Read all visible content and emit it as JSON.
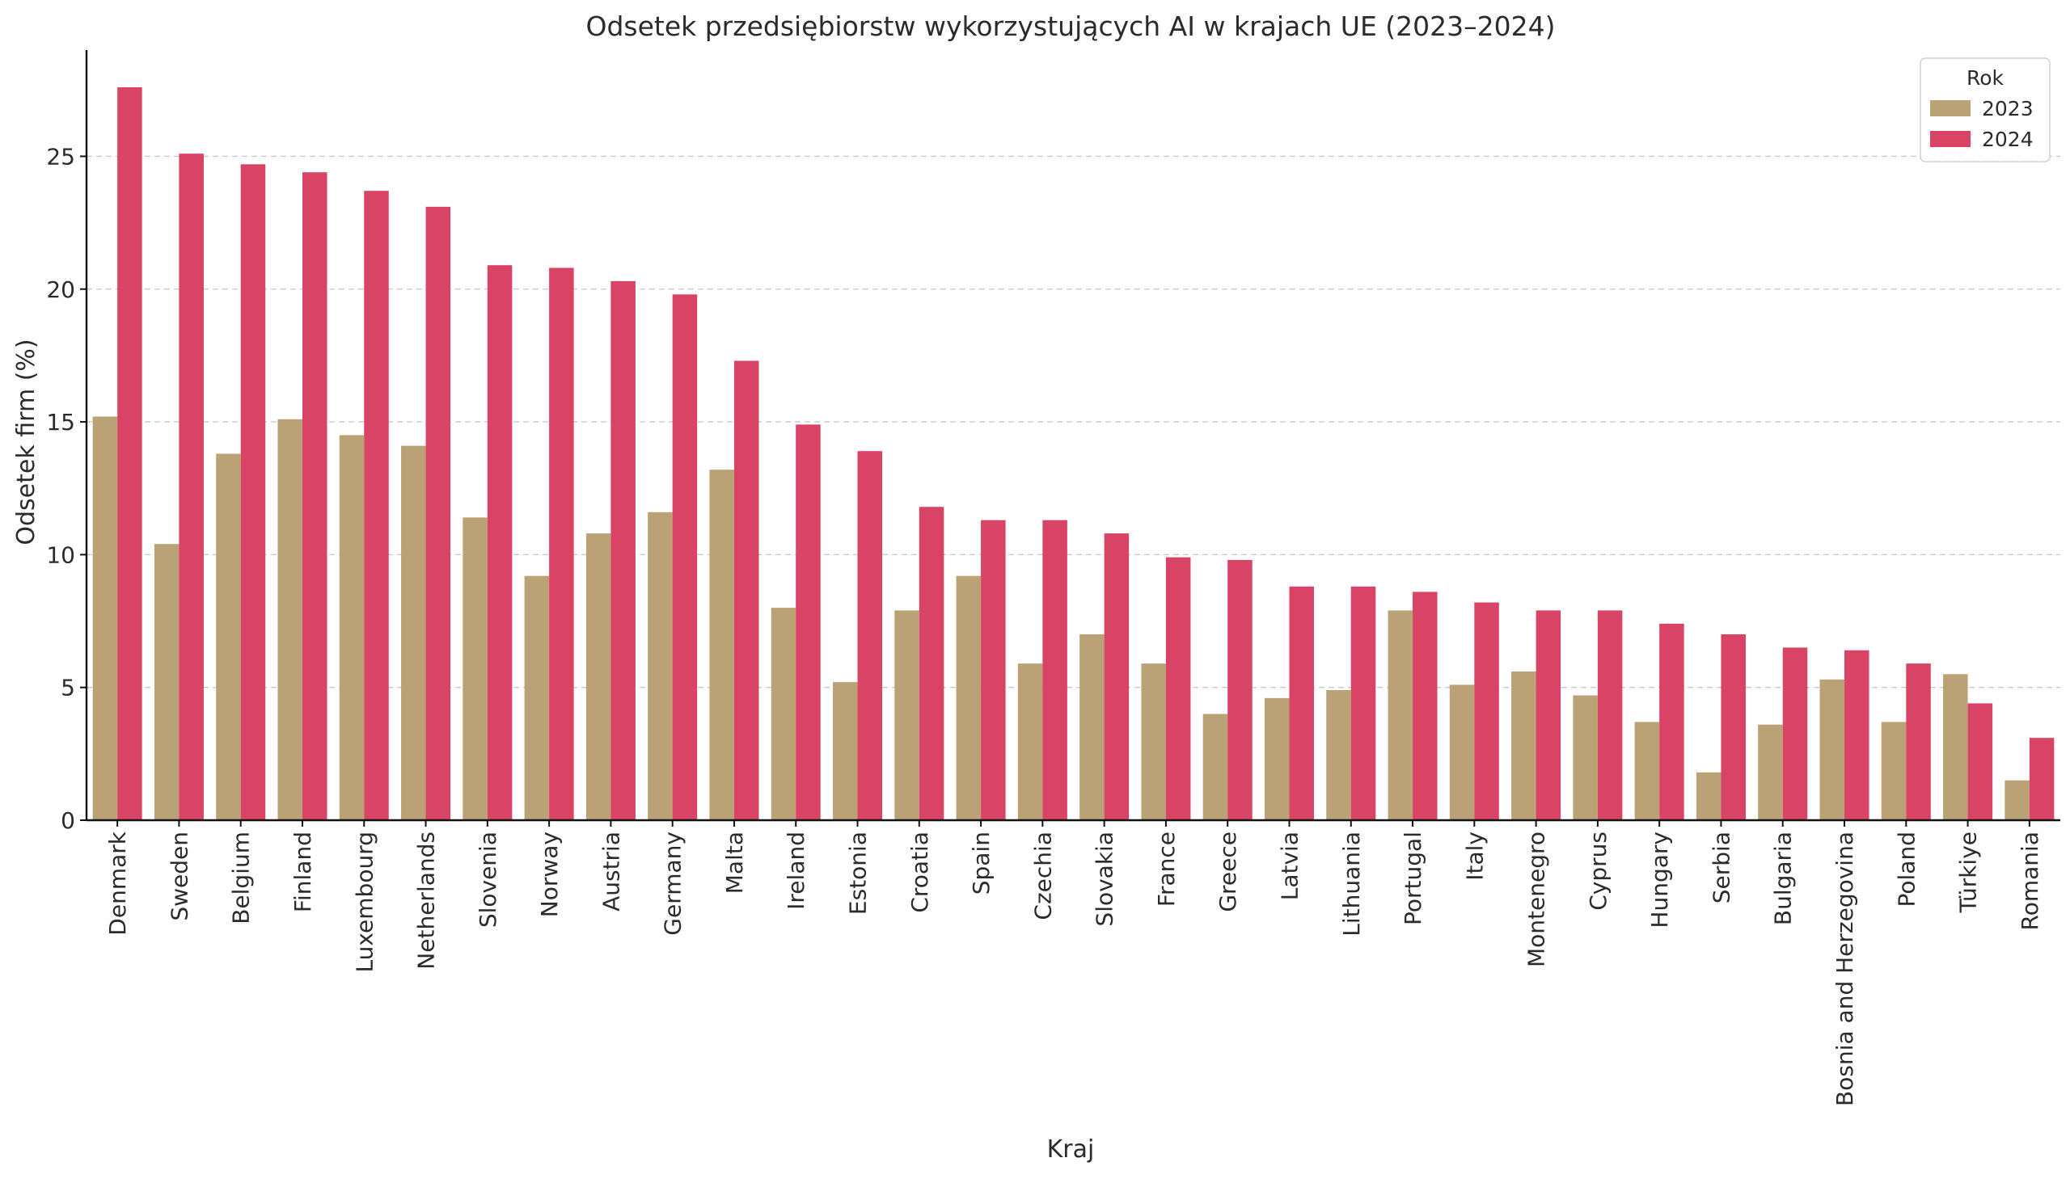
{
  "chart_data": {
    "type": "bar",
    "title": "Odsetek przedsiębiorstw wykorzystujących AI w krajach UE (2023–2024)",
    "xlabel": "Kraj",
    "ylabel": "Odsetek firm (%)",
    "ylim": [
      0,
      29
    ],
    "yticks": [
      0,
      5,
      10,
      15,
      20,
      25
    ],
    "grid": "horizontal-dashed",
    "legend": {
      "title": "Rok",
      "placement": "top-right"
    },
    "categories": [
      "Denmark",
      "Sweden",
      "Belgium",
      "Finland",
      "Luxembourg",
      "Netherlands",
      "Slovenia",
      "Norway",
      "Austria",
      "Germany",
      "Malta",
      "Ireland",
      "Estonia",
      "Croatia",
      "Spain",
      "Czechia",
      "Slovakia",
      "France",
      "Greece",
      "Latvia",
      "Lithuania",
      "Portugal",
      "Italy",
      "Montenegro",
      "Cyprus",
      "Hungary",
      "Serbia",
      "Bulgaria",
      "Bosnia and Herzegovina",
      "Poland",
      "Türkiye",
      "Romania"
    ],
    "series": [
      {
        "name": "2023",
        "color": "#bba276",
        "values": [
          15.2,
          10.4,
          13.8,
          15.1,
          14.5,
          14.1,
          11.4,
          9.2,
          10.8,
          11.6,
          13.2,
          8.0,
          5.2,
          7.9,
          9.2,
          5.9,
          7.0,
          5.9,
          4.0,
          4.6,
          4.9,
          7.9,
          5.1,
          5.6,
          4.7,
          3.7,
          1.8,
          3.6,
          5.3,
          3.7,
          5.5,
          1.5
        ]
      },
      {
        "name": "2024",
        "color": "#d94466",
        "values": [
          27.6,
          25.1,
          24.7,
          24.4,
          23.7,
          23.1,
          20.9,
          20.8,
          20.3,
          19.8,
          17.3,
          14.9,
          13.9,
          11.8,
          11.3,
          11.3,
          10.8,
          9.9,
          9.8,
          8.8,
          8.8,
          8.6,
          8.2,
          7.9,
          7.9,
          7.4,
          7.0,
          6.5,
          6.4,
          5.9,
          4.4,
          3.1
        ]
      }
    ]
  }
}
